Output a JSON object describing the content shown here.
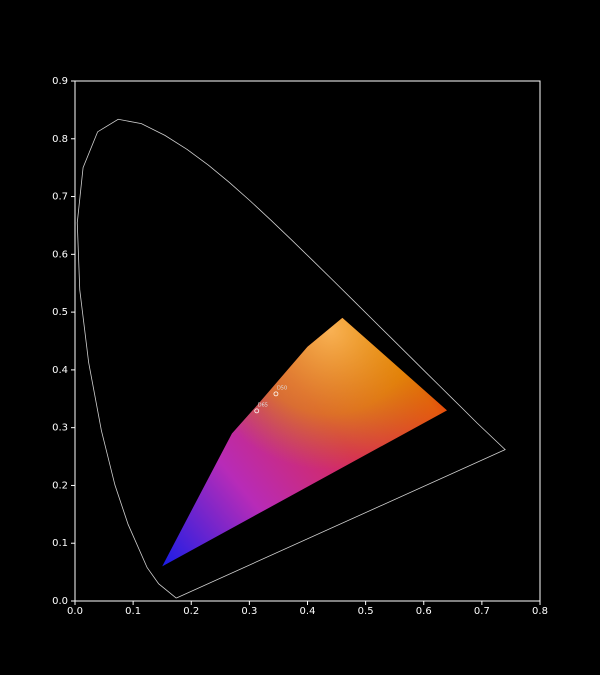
{
  "chart_data": {
    "type": "scatter",
    "xlim": [
      0,
      0.8
    ],
    "ylim": [
      0,
      0.9
    ],
    "xticks": [
      {
        "value": 0,
        "label": "0.0"
      },
      0.1,
      0.2,
      0.3,
      0.4,
      0.5,
      0.6,
      0.7,
      {
        "value": 0.8,
        "label": "0.8"
      }
    ],
    "yticks": [
      {
        "value": 0,
        "label": "0.0"
      },
      0.1,
      0.2,
      0.3,
      0.4,
      0.5,
      0.6,
      0.7,
      0.8,
      0.9
    ],
    "series": [
      {
        "kind": "line",
        "color": "#d0d0d0",
        "x": [
          0.1741,
          0.144,
          0.1241,
          0.0913,
          0.0687,
          0.0454,
          0.0235,
          0.0082,
          0.0039,
          0.0139,
          0.0389,
          0.0743,
          0.1142,
          0.1547,
          0.1929,
          0.2296,
          0.2658,
          0.3016,
          0.3373,
          0.3731,
          0.4087,
          0.4441,
          0.4788,
          0.5125,
          0.5448,
          0.5752,
          0.6029,
          0.627,
          0.6482,
          0.6658,
          0.6915,
          0.74,
          0.1741
        ],
        "y": [
          0.005,
          0.0297,
          0.0578,
          0.1327,
          0.2007,
          0.295,
          0.4127,
          0.5384,
          0.6548,
          0.7502,
          0.812,
          0.8338,
          0.8262,
          0.8059,
          0.7816,
          0.7543,
          0.7243,
          0.6923,
          0.6589,
          0.6245,
          0.5896,
          0.5547,
          0.5202,
          0.4866,
          0.4544,
          0.4242,
          0.3965,
          0.3725,
          0.3514,
          0.334,
          0.3083,
          0.262,
          0.005
        ]
      },
      {
        "kind": "area",
        "x": [
          0.15,
          0.27,
          0.31,
          0.4,
          0.46,
          0.64,
          0.15
        ],
        "y": [
          0.06,
          0.29,
          0.335,
          0.44,
          0.49,
          0.33,
          0.06
        ]
      },
      {
        "kind": "scatter",
        "color": "#ffffff",
        "x": [
          0.3457,
          0.3127
        ],
        "y": [
          0.3585,
          0.329
        ],
        "point_labels": [
          "D50",
          "D65"
        ]
      }
    ]
  }
}
